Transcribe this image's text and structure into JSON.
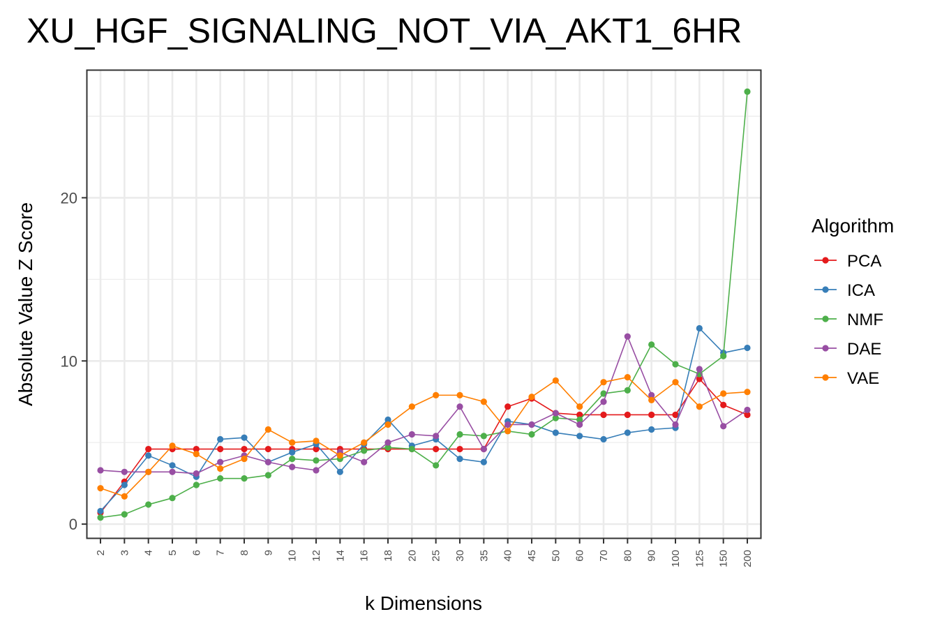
{
  "chart_data": {
    "type": "line",
    "title": "XU_HGF_SIGNALING_NOT_VIA_AKT1_6HR",
    "xlabel": "k Dimensions",
    "ylabel": "Absolute Value Z Score",
    "categories": [
      "2",
      "3",
      "4",
      "5",
      "6",
      "7",
      "8",
      "9",
      "10",
      "12",
      "14",
      "16",
      "18",
      "20",
      "25",
      "30",
      "35",
      "40",
      "45",
      "50",
      "60",
      "70",
      "80",
      "90",
      "100",
      "125",
      "150",
      "200"
    ],
    "y_ticks": [
      0,
      10,
      20
    ],
    "ylim": [
      -0.85,
      27.8
    ],
    "grid": true,
    "legend": {
      "title": "Algorithm",
      "position": "right"
    },
    "series": [
      {
        "name": "PCA",
        "color": "#e41a1c",
        "values": [
          0.7,
          2.6,
          4.6,
          4.6,
          4.6,
          4.6,
          4.6,
          4.6,
          4.6,
          4.6,
          4.6,
          4.6,
          4.6,
          4.6,
          4.6,
          4.6,
          4.6,
          7.2,
          7.7,
          6.8,
          6.7,
          6.7,
          6.7,
          6.7,
          6.7,
          8.9,
          7.3,
          6.7
        ]
      },
      {
        "name": "ICA",
        "color": "#377eb8",
        "values": [
          0.8,
          2.4,
          4.2,
          3.6,
          2.9,
          5.2,
          5.3,
          3.8,
          4.4,
          4.9,
          3.2,
          4.9,
          6.4,
          4.8,
          5.2,
          4.0,
          3.8,
          6.3,
          6.1,
          5.6,
          5.4,
          5.2,
          5.6,
          5.8,
          5.9,
          12.0,
          10.5,
          10.8
        ]
      },
      {
        "name": "NMF",
        "color": "#4daf4a",
        "values": [
          0.4,
          0.6,
          1.2,
          1.6,
          2.4,
          2.8,
          2.8,
          3.0,
          4.0,
          3.9,
          4.0,
          4.5,
          4.7,
          4.6,
          3.6,
          5.5,
          5.4,
          5.7,
          5.5,
          6.5,
          6.4,
          8.0,
          8.2,
          11.0,
          9.8,
          9.2,
          10.3,
          26.5
        ]
      },
      {
        "name": "DAE",
        "color": "#984ea3",
        "values": [
          3.3,
          3.2,
          3.2,
          3.2,
          3.1,
          3.8,
          4.2,
          3.8,
          3.5,
          3.3,
          4.4,
          3.8,
          5.0,
          5.5,
          5.4,
          7.2,
          4.6,
          6.1,
          6.1,
          6.8,
          6.1,
          7.5,
          11.5,
          7.9,
          6.1,
          9.5,
          6.0,
          7.0
        ]
      },
      {
        "name": "VAE",
        "color": "#ff7f00",
        "values": [
          2.2,
          1.7,
          3.2,
          4.8,
          4.3,
          3.4,
          4.0,
          5.8,
          5.0,
          5.1,
          4.2,
          5.0,
          6.1,
          7.2,
          7.9,
          7.9,
          7.5,
          5.7,
          7.8,
          8.8,
          7.2,
          8.7,
          9.0,
          7.6,
          8.7,
          7.2,
          8.0,
          8.1
        ]
      }
    ]
  }
}
